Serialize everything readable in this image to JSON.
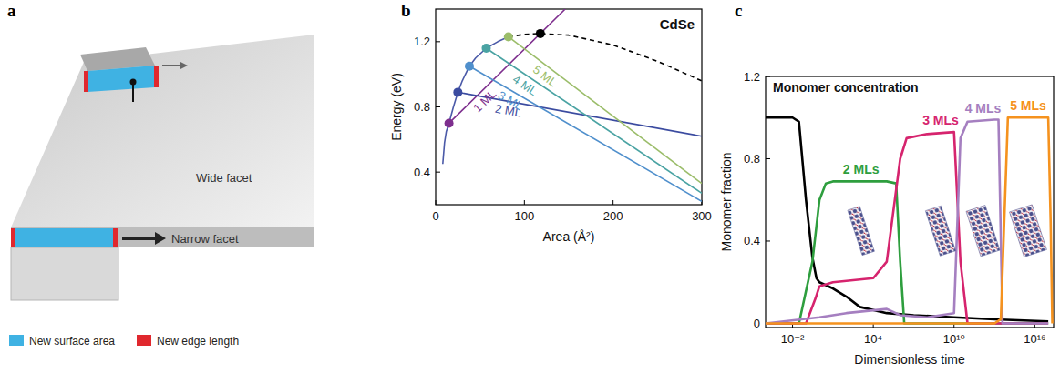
{
  "diagram": {
    "panel": "a",
    "labels": {
      "wide": "Wide facet",
      "narrow": "Narrow facet"
    },
    "legend": [
      {
        "label": "New surface area",
        "color": "#3fb2e3"
      },
      {
        "label": "New edge length",
        "color": "#e0282e"
      }
    ]
  },
  "chart_data": [
    {
      "type": "line",
      "panel": "b",
      "title": "CdSe",
      "xlabel": "Area (Å²)",
      "ylabel": "Energy (eV)",
      "xlim": [
        0,
        300
      ],
      "ylim": [
        0.2,
        1.4
      ],
      "xticks": [
        0,
        100,
        200,
        300
      ],
      "yticks": [
        0.4,
        0.8,
        1.2
      ],
      "grid": false,
      "series": [
        {
          "x": [
            8,
            10,
            12,
            15,
            20,
            25,
            30,
            38,
            45,
            57,
            70,
            82
          ],
          "values": [
            0.45,
            0.58,
            0.65,
            0.7,
            0.8,
            0.89,
            0.96,
            1.05,
            1.1,
            1.16,
            1.2,
            1.23
          ],
          "color": "#4b5aa8"
        },
        {
          "x": [
            82,
            100,
            118,
            150,
            200,
            250,
            300
          ],
          "values": [
            1.23,
            1.245,
            1.25,
            1.24,
            1.18,
            1.08,
            0.96
          ],
          "color": "#000000",
          "line_style": "dashed"
        },
        {
          "name": "1 ML",
          "x": [
            15,
            146
          ],
          "values": [
            0.7,
            1.4
          ],
          "color": "#7e2f8e"
        },
        {
          "name": "2 ML",
          "x": [
            25,
            300
          ],
          "values": [
            0.89,
            0.62
          ],
          "color": "#3b4ba0"
        },
        {
          "name": "3 ML",
          "x": [
            38,
            300
          ],
          "values": [
            1.05,
            0.22
          ],
          "color": "#4f8fcc"
        },
        {
          "name": "4 ML",
          "x": [
            57,
            300
          ],
          "values": [
            1.16,
            0.27
          ],
          "color": "#4aa3a3"
        },
        {
          "name": "5 ML",
          "x": [
            82,
            300
          ],
          "values": [
            1.23,
            0.33
          ],
          "color": "#9bbd6a"
        },
        {
          "type": "scatter",
          "marker": "circle",
          "x": [
            15,
            25,
            38,
            57,
            82,
            118
          ],
          "values": [
            0.7,
            0.89,
            1.05,
            1.16,
            1.23,
            1.25
          ],
          "colors": [
            "#7e2f8e",
            "#3b4ba0",
            "#4f8fcc",
            "#4aa3a3",
            "#9bbd6a",
            "#000000"
          ]
        }
      ]
    },
    {
      "type": "line",
      "panel": "c",
      "title": "Monomer concentration",
      "xlabel": "Dimensionless time",
      "ylabel": "Monomer fraction",
      "log": "x",
      "xlim": [
        0.0001,
        2.5e+17
      ],
      "ylim": [
        -0.02,
        1.2
      ],
      "grid": false,
      "xticks": [
        {
          "value": 0.01,
          "label": "10⁻²"
        },
        {
          "value": 10000,
          "label": "10⁴"
        },
        {
          "value": 10000000000,
          "label": "10¹⁰"
        },
        {
          "value": 1e+16,
          "label": "10¹⁶"
        }
      ],
      "yticks": [
        0,
        0.4,
        0.8,
        1.2
      ],
      "series": [
        {
          "color": "#000000",
          "x": [
            0.0001,
            0.01,
            0.03,
            0.1,
            0.3,
            0.6,
            1,
            10,
            100,
            1000,
            100000,
            10000000,
            10000000000,
            10000000000000,
            1e+17
          ],
          "values": [
            1.0,
            1.0,
            0.98,
            0.6,
            0.32,
            0.22,
            0.2,
            0.17,
            0.13,
            0.08,
            0.05,
            0.04,
            0.03,
            0.02,
            0.01
          ]
        },
        {
          "name": "2 MLs",
          "color": "#2e9e3e",
          "x": [
            0.0001,
            0.03,
            0.3,
            1,
            3,
            10,
            1000,
            100000,
            500000,
            1000000,
            2000000,
            1e+17
          ],
          "values": [
            0,
            0,
            0.3,
            0.6,
            0.68,
            0.69,
            0.69,
            0.69,
            0.68,
            0.3,
            0,
            0
          ]
        },
        {
          "name": "3 MLs",
          "color": "#d6246e",
          "x": [
            0.0001,
            0.1,
            0.5,
            1,
            10,
            10000,
            100000,
            1000000,
            3000000,
            100000000,
            10000000000,
            30000000000,
            100000000000,
            1e+17
          ],
          "values": [
            0,
            0,
            0.12,
            0.18,
            0.2,
            0.22,
            0.3,
            0.8,
            0.9,
            0.92,
            0.93,
            0.3,
            0,
            0
          ]
        },
        {
          "name": "4 MLs",
          "color": "#a57fc0",
          "x": [
            0.0001,
            1,
            100,
            100000,
            1000000,
            100000000,
            10000000000,
            30000000000,
            100000000000,
            10000000000000,
            20000000000000,
            40000000000000,
            1e+17
          ],
          "values": [
            0,
            0.03,
            0.05,
            0.07,
            0.04,
            0.03,
            0.05,
            0.9,
            0.98,
            0.99,
            0.99,
            0,
            0
          ]
        },
        {
          "name": "5 MLs",
          "color": "#f5921e",
          "x": [
            0.0001,
            10000000000000,
            30000000000000,
            100000000000000,
            1e+16,
            6e+16,
            1e+17,
            1.5e+17,
            2e+17
          ],
          "values": [
            0,
            0,
            0.02,
            1.0,
            1.0,
            1.0,
            1.0,
            0.5,
            0
          ]
        }
      ]
    }
  ]
}
